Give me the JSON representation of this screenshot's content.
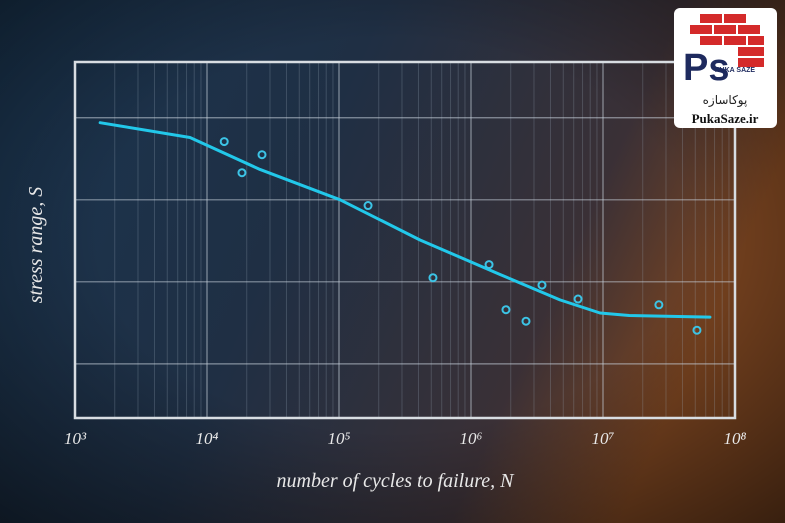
{
  "chart_data": {
    "type": "line",
    "xlabel": "number of cycles to failure, N",
    "ylabel": "stress range, S",
    "xscale": "log",
    "xlim": [
      1000,
      100000000
    ],
    "xticks": [
      {
        "value": 1000,
        "label": "10³"
      },
      {
        "value": 10000,
        "label": "10⁴"
      },
      {
        "value": 100000,
        "label": "10⁵"
      },
      {
        "value": 1000000,
        "label": "10⁶"
      },
      {
        "value": 10000000,
        "label": "10⁷"
      },
      {
        "value": 100000000,
        "label": "10⁸"
      }
    ],
    "ylim": [
      0.34,
      4.68
    ],
    "ygrid": [
      1,
      2,
      3,
      4
    ],
    "grid": true,
    "series": [
      {
        "mode": "line",
        "color": "#22c8ea",
        "x": [
          1550,
          7430,
          25200,
          102000,
          411000,
          1660000,
          4720000,
          9500000,
          15800000,
          64600000
        ],
        "values": [
          3.94,
          3.76,
          3.37,
          3.0,
          2.51,
          2.09,
          1.78,
          1.62,
          1.59,
          1.57
        ]
      },
      {
        "mode": "markers",
        "color": "#3cc4e6",
        "x": [
          13500,
          18400,
          26100,
          166000,
          515000,
          1370000,
          1840000,
          2610000,
          3450000,
          6470000,
          26500000,
          51500000
        ],
        "values": [
          3.71,
          3.33,
          3.55,
          2.93,
          2.05,
          2.21,
          1.66,
          1.52,
          1.96,
          1.79,
          1.72,
          1.41
        ]
      }
    ]
  },
  "logo": {
    "mark": "Ps",
    "tagline": "PUKA SAZE",
    "persian": "پوکاسازه",
    "site": "PukaSaze.ir"
  }
}
